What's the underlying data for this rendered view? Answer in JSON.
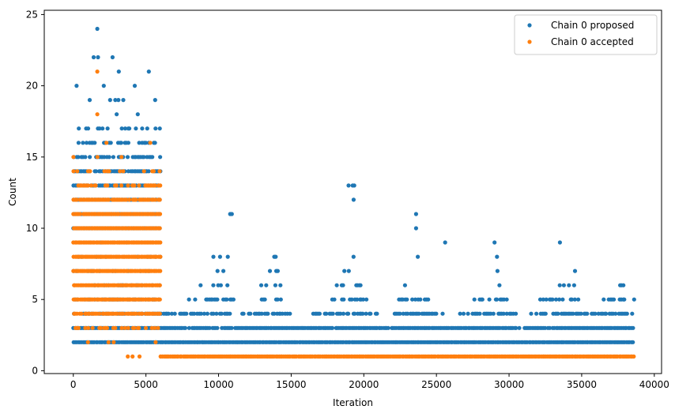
{
  "chart_data": {
    "type": "scatter",
    "title": "",
    "xlabel": "Iteration",
    "ylabel": "Count",
    "xlim": [
      -2000,
      40500
    ],
    "ylim": [
      -0.2,
      25.3
    ],
    "xticks": [
      0,
      5000,
      10000,
      15000,
      20000,
      25000,
      30000,
      35000,
      40000
    ],
    "yticks": [
      0,
      5,
      10,
      15,
      20,
      25
    ],
    "xtick_labels": [
      "0",
      "5000",
      "10000",
      "15000",
      "20000",
      "25000",
      "30000",
      "35000",
      "40000"
    ],
    "ytick_labels": [
      "0",
      "5",
      "10",
      "15",
      "20",
      "25"
    ],
    "grid": false,
    "legend_position": "top-right",
    "series": [
      {
        "name": "Chain 0 proposed",
        "color": "#1f77b4",
        "bands": [
          {
            "y": 1,
            "ranges": [
              [
                0,
                6000
              ]
            ],
            "density": 0.02
          },
          {
            "y": 2,
            "ranges": [
              [
                0,
                38600
              ]
            ],
            "density": 1.0
          },
          {
            "y": 3,
            "ranges": [
              [
                0,
                38600
              ]
            ],
            "density": 0.95
          },
          {
            "y": 4,
            "ranges": [
              [
                0,
                6000
              ],
              [
                6000,
                11000
              ],
              [
                11500,
                15000
              ],
              [
                16500,
                21000
              ],
              [
                22000,
                25500
              ],
              [
                26500,
                30500
              ],
              [
                31500,
                38600
              ]
            ],
            "density": 0.7
          },
          {
            "y": 5,
            "ranges": [
              [
                0,
                6000
              ],
              [
                7800,
                11000
              ],
              [
                12500,
                14700
              ],
              [
                17500,
                20200
              ],
              [
                22300,
                24700
              ],
              [
                27500,
                30000
              ],
              [
                32000,
                34800
              ],
              [
                36500,
                38600
              ]
            ],
            "density": 0.5
          },
          {
            "y": 6,
            "ranges": [
              [
                0,
                6000
              ],
              [
                8500,
                10800
              ],
              [
                12800,
                14500
              ],
              [
                18000,
                19800
              ],
              [
                22800,
                24000
              ],
              [
                28300,
                29500
              ],
              [
                33000,
                34500
              ],
              [
                37600,
                38500
              ]
            ],
            "density": 0.3
          },
          {
            "y": 7,
            "ranges": [
              [
                0,
                6000
              ],
              [
                9000,
                10900
              ],
              [
                13500,
                14500
              ],
              [
                18300,
                19500
              ],
              [
                23300,
                24100
              ],
              [
                28600,
                29300
              ],
              [
                33400,
                34500
              ],
              [
                38000,
                38500
              ]
            ],
            "density": 0.2
          },
          {
            "y": 8,
            "ranges": [
              [
                0,
                6000
              ],
              [
                9300,
                10800
              ],
              [
                13800,
                14400
              ],
              [
                18500,
                19300
              ],
              [
                23600,
                24000
              ],
              [
                28700,
                29200
              ],
              [
                33800,
                34300
              ],
              [
                38400,
                38500
              ]
            ],
            "density": 0.15
          },
          {
            "y": 9,
            "ranges": [
              [
                0,
                6000
              ],
              [
                10000,
                10900
              ],
              [
                14000,
                14500
              ],
              [
                19300,
                19400
              ],
              [
                25600,
                25600
              ],
              [
                29000,
                29000
              ],
              [
                33500,
                33500
              ]
            ],
            "density": 0.1
          },
          {
            "y": 10,
            "ranges": [
              [
                0,
                6000
              ],
              [
                23600,
                23600
              ]
            ],
            "density": 1.0
          },
          {
            "y": 11,
            "ranges": [
              [
                0,
                6000
              ],
              [
                10800,
                11000
              ],
              [
                23600,
                23600
              ]
            ],
            "density": 1.0
          },
          {
            "y": 12,
            "ranges": [
              [
                0,
                6000
              ],
              [
                19300,
                19300
              ]
            ],
            "density": 1.0
          },
          {
            "y": 13,
            "ranges": [
              [
                0,
                6000
              ],
              [
                18900,
                19400
              ]
            ],
            "density": 0.8
          },
          {
            "y": 14,
            "ranges": [
              [
                0,
                6000
              ]
            ],
            "density": 0.85
          },
          {
            "y": 15,
            "ranges": [
              [
                0,
                6000
              ]
            ],
            "density": 0.6
          },
          {
            "y": 16,
            "ranges": [
              [
                0,
                6000
              ]
            ],
            "density": 0.4
          },
          {
            "y": 17,
            "ranges": [
              [
                0,
                6000
              ]
            ],
            "density": 0.25
          },
          {
            "y": 18,
            "ranges": [
              [
                0,
                6000
              ]
            ],
            "density": 0.12
          },
          {
            "y": 19,
            "ranges": [
              [
                0,
                6000
              ]
            ],
            "density": 0.08
          },
          {
            "y": 20,
            "ranges": [
              [
                0,
                6000
              ]
            ],
            "density": 0.05
          },
          {
            "y": 21,
            "ranges": [
              [
                800,
                5500
              ]
            ],
            "density": 0.03
          },
          {
            "y": 22,
            "ranges": [
              [
                1300,
                2800
              ]
            ],
            "density": 0.02
          }
        ],
        "points": [
          {
            "x": 1650,
            "y": 24
          },
          {
            "x": 5200,
            "y": 21
          },
          {
            "x": 1400,
            "y": 22
          },
          {
            "x": 1700,
            "y": 22
          },
          {
            "x": 2700,
            "y": 22
          }
        ]
      },
      {
        "name": "Chain 0 accepted",
        "color": "#ff7f0e",
        "bands": [
          {
            "y": 1,
            "ranges": [
              [
                0,
                6000
              ]
            ],
            "density": 0.03
          },
          {
            "y": 1,
            "ranges": [
              [
                6000,
                38600
              ]
            ],
            "density": 1.0
          },
          {
            "y": 2,
            "ranges": [
              [
                0,
                6000
              ]
            ],
            "density": 0.08
          },
          {
            "y": 3,
            "ranges": [
              [
                0,
                6000
              ]
            ],
            "density": 0.5
          },
          {
            "y": 4,
            "ranges": [
              [
                0,
                6000
              ]
            ],
            "density": 0.9
          },
          {
            "y": 5,
            "ranges": [
              [
                0,
                6000
              ]
            ],
            "density": 1.0
          },
          {
            "y": 6,
            "ranges": [
              [
                0,
                6000
              ]
            ],
            "density": 1.0
          },
          {
            "y": 7,
            "ranges": [
              [
                0,
                6000
              ]
            ],
            "density": 1.0
          },
          {
            "y": 8,
            "ranges": [
              [
                0,
                6000
              ]
            ],
            "density": 1.0
          },
          {
            "y": 9,
            "ranges": [
              [
                0,
                6000
              ]
            ],
            "density": 1.0
          },
          {
            "y": 10,
            "ranges": [
              [
                0,
                6000
              ]
            ],
            "density": 1.0
          },
          {
            "y": 11,
            "ranges": [
              [
                0,
                6000
              ]
            ],
            "density": 0.95
          },
          {
            "y": 12,
            "ranges": [
              [
                0,
                6000
              ]
            ],
            "density": 0.8
          },
          {
            "y": 13,
            "ranges": [
              [
                0,
                6000
              ]
            ],
            "density": 0.5
          },
          {
            "y": 14,
            "ranges": [
              [
                0,
                6000
              ]
            ],
            "density": 0.3
          },
          {
            "y": 15,
            "ranges": [
              [
                0,
                6000
              ]
            ],
            "density": 0.1
          },
          {
            "y": 16,
            "ranges": [
              [
                700,
                6000
              ]
            ],
            "density": 0.05
          }
        ],
        "points": [
          {
            "x": 1650,
            "y": 21
          },
          {
            "x": 1650,
            "y": 18
          },
          {
            "x": 5300,
            "y": 16
          }
        ]
      }
    ]
  }
}
